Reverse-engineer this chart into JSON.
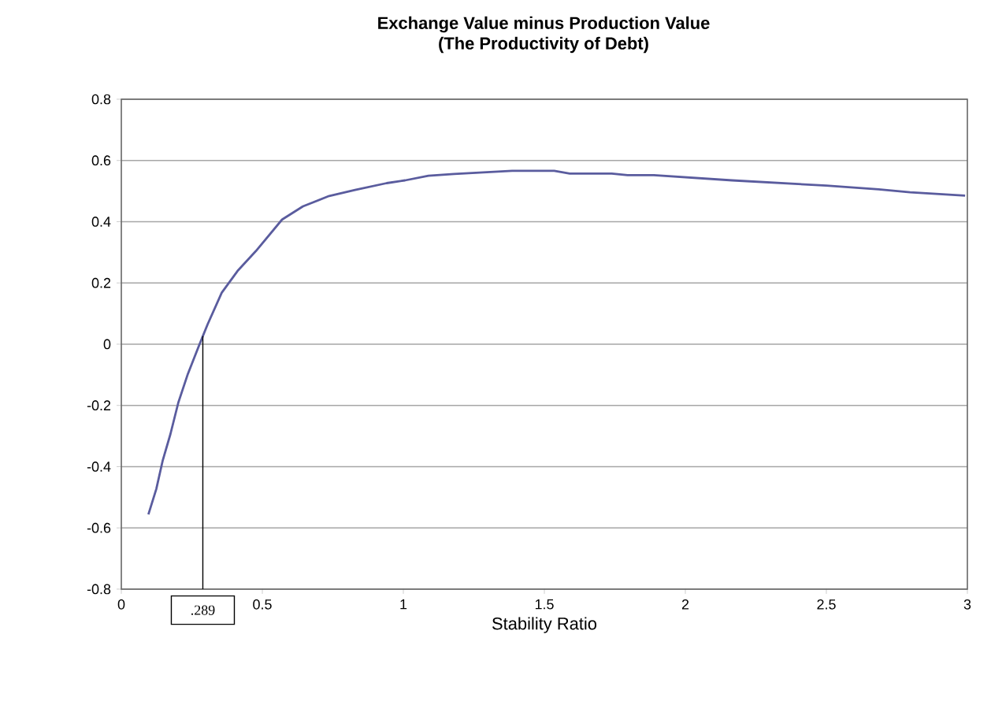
{
  "chart_data": {
    "type": "line",
    "title": "Exchange Value minus Production Value",
    "subtitle": "(The Productivity of Debt)",
    "xlabel": "Stability Ratio",
    "x": [
      0.096,
      0.124,
      0.147,
      0.174,
      0.202,
      0.236,
      0.276,
      0.306,
      0.356,
      0.412,
      0.477,
      0.57,
      0.644,
      0.737,
      0.829,
      0.941,
      1.006,
      1.089,
      1.18,
      1.386,
      1.535,
      1.59,
      1.739,
      1.795,
      1.888,
      2.166,
      2.5,
      2.685,
      2.797,
      2.992
    ],
    "values": [
      -0.556,
      -0.473,
      -0.379,
      -0.294,
      -0.191,
      -0.097,
      -0.003,
      0.065,
      0.168,
      0.239,
      0.304,
      0.407,
      0.45,
      0.484,
      0.504,
      0.526,
      0.535,
      0.55,
      0.556,
      0.566,
      0.566,
      0.557,
      0.557,
      0.552,
      0.552,
      0.535,
      0.518,
      0.506,
      0.496,
      0.485
    ],
    "color": "#5a5c9e",
    "xlim": [
      0,
      3
    ],
    "ylim": [
      -0.8,
      0.8
    ],
    "xticks": [
      0,
      0.5,
      1,
      1.5,
      2,
      2.5,
      3
    ],
    "yticks": [
      -0.8,
      -0.6,
      -0.4,
      -0.2,
      0,
      0.2,
      0.4,
      0.6,
      0.8
    ],
    "grid": "y",
    "marker": "none",
    "line_style": "solid",
    "ref_lines": [
      {
        "axis": "x",
        "value": 0.289,
        "label": ".289",
        "color": "#000000"
      }
    ]
  }
}
